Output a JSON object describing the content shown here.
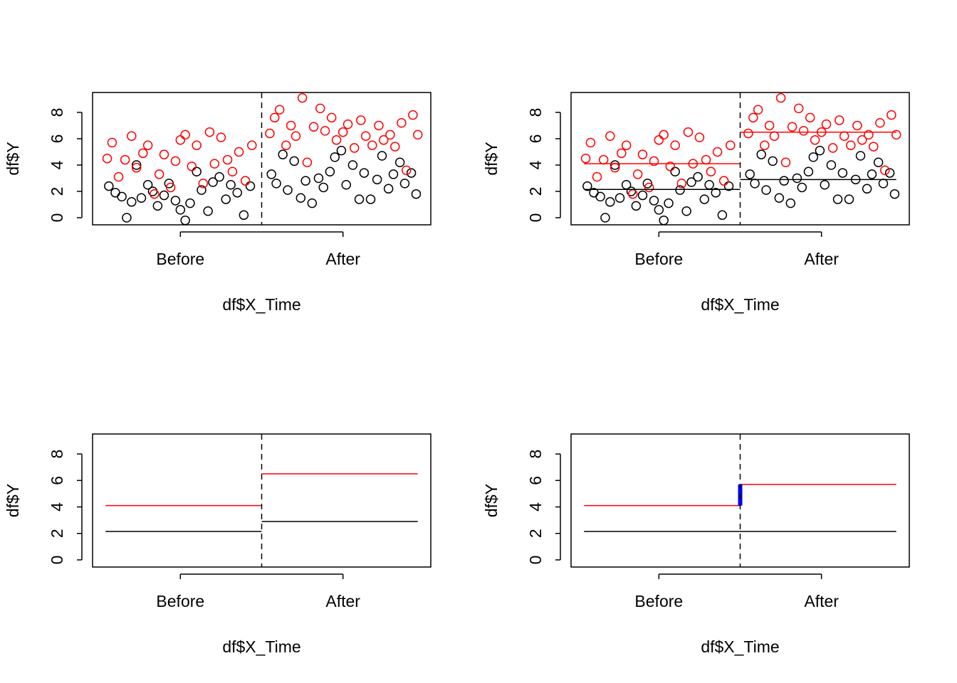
{
  "chart_data": [
    {
      "type": "scatter",
      "y_label": "df$Y",
      "x_label": "df$X_Time",
      "xlim": [
        -0.54,
        1.54
      ],
      "ylim": [
        -0.54,
        9.51
      ],
      "yticks": [
        0,
        2,
        4,
        6,
        8
      ],
      "xticks": [
        {
          "value": 0,
          "label": "Before"
        },
        {
          "value": 1,
          "label": "After"
        }
      ],
      "vline": 0.5,
      "series": [
        {
          "color": "#000000",
          "x": [
            -0.44,
            -0.4,
            -0.36,
            -0.33,
            -0.3,
            -0.27,
            -0.24,
            -0.2,
            -0.17,
            -0.14,
            -0.1,
            -0.07,
            -0.03,
            0.0,
            0.03,
            0.06,
            0.1,
            0.13,
            0.17,
            0.2,
            0.24,
            0.28,
            0.31,
            0.35,
            0.39,
            0.43
          ],
          "values": [
            2.4,
            1.9,
            1.6,
            0.0,
            1.2,
            4.0,
            1.5,
            2.5,
            2.0,
            0.9,
            1.7,
            2.6,
            1.3,
            0.6,
            -0.2,
            1.1,
            3.5,
            2.1,
            0.5,
            2.7,
            3.1,
            1.4,
            2.5,
            1.9,
            0.2,
            2.4
          ]
        },
        {
          "color": "#ff0000",
          "x": [
            -0.45,
            -0.42,
            -0.38,
            -0.34,
            -0.3,
            -0.27,
            -0.23,
            -0.2,
            -0.16,
            -0.13,
            -0.1,
            -0.06,
            -0.03,
            0.0,
            0.03,
            0.07,
            0.1,
            0.14,
            0.18,
            0.21,
            0.25,
            0.29,
            0.32,
            0.36,
            0.4,
            0.44
          ],
          "values": [
            4.5,
            5.7,
            3.1,
            4.4,
            6.2,
            3.8,
            4.9,
            5.5,
            1.8,
            3.3,
            4.8,
            2.3,
            4.3,
            5.9,
            6.3,
            3.9,
            5.5,
            2.6,
            6.5,
            4.1,
            6.1,
            4.4,
            3.5,
            5.0,
            2.8,
            5.5
          ]
        },
        {
          "color": "#000000",
          "x": [
            0.56,
            0.59,
            0.63,
            0.66,
            0.7,
            0.74,
            0.77,
            0.81,
            0.85,
            0.88,
            0.92,
            0.95,
            0.99,
            1.02,
            1.06,
            1.1,
            1.13,
            1.17,
            1.21,
            1.24,
            1.28,
            1.31,
            1.35,
            1.38,
            1.42,
            1.45
          ],
          "values": [
            3.3,
            2.6,
            4.8,
            2.1,
            4.3,
            1.5,
            2.8,
            1.1,
            3.0,
            2.3,
            3.5,
            4.6,
            5.1,
            2.5,
            4.0,
            1.4,
            3.4,
            1.4,
            2.9,
            4.7,
            2.2,
            3.3,
            4.2,
            2.6,
            3.4,
            1.8
          ]
        },
        {
          "color": "#ff0000",
          "x": [
            0.55,
            0.58,
            0.61,
            0.65,
            0.68,
            0.71,
            0.75,
            0.78,
            0.82,
            0.86,
            0.89,
            0.93,
            0.96,
            1.0,
            1.03,
            1.07,
            1.11,
            1.14,
            1.18,
            1.22,
            1.25,
            1.29,
            1.32,
            1.36,
            1.39,
            1.43,
            1.46
          ],
          "values": [
            6.4,
            7.6,
            8.2,
            5.5,
            7.0,
            6.2,
            9.1,
            4.2,
            6.9,
            8.3,
            6.6,
            7.6,
            5.9,
            6.5,
            7.1,
            5.3,
            7.4,
            6.2,
            5.5,
            7.0,
            5.9,
            6.3,
            5.4,
            7.2,
            3.6,
            7.8,
            6.3
          ]
        }
      ],
      "segments": []
    },
    {
      "type": "scatter",
      "y_label": "df$Y",
      "x_label": "df$X_Time",
      "xlim": [
        -0.54,
        1.54
      ],
      "ylim": [
        -0.54,
        9.51
      ],
      "yticks": [
        0,
        2,
        4,
        6,
        8
      ],
      "xticks": [
        {
          "value": 0,
          "label": "Before"
        },
        {
          "value": 1,
          "label": "After"
        }
      ],
      "vline": 0.5,
      "series": [
        {
          "color": "#000000",
          "x": [
            -0.44,
            -0.4,
            -0.36,
            -0.33,
            -0.3,
            -0.27,
            -0.24,
            -0.2,
            -0.17,
            -0.14,
            -0.1,
            -0.07,
            -0.03,
            0.0,
            0.03,
            0.06,
            0.1,
            0.13,
            0.17,
            0.2,
            0.24,
            0.28,
            0.31,
            0.35,
            0.39,
            0.43
          ],
          "values": [
            2.4,
            1.9,
            1.6,
            0.0,
            1.2,
            4.0,
            1.5,
            2.5,
            2.0,
            0.9,
            1.7,
            2.6,
            1.3,
            0.6,
            -0.2,
            1.1,
            3.5,
            2.1,
            0.5,
            2.7,
            3.1,
            1.4,
            2.5,
            1.9,
            0.2,
            2.4
          ]
        },
        {
          "color": "#ff0000",
          "x": [
            -0.45,
            -0.42,
            -0.38,
            -0.34,
            -0.3,
            -0.27,
            -0.23,
            -0.2,
            -0.16,
            -0.13,
            -0.1,
            -0.06,
            -0.03,
            0.0,
            0.03,
            0.07,
            0.1,
            0.14,
            0.18,
            0.21,
            0.25,
            0.29,
            0.32,
            0.36,
            0.4,
            0.44
          ],
          "values": [
            4.5,
            5.7,
            3.1,
            4.4,
            6.2,
            3.8,
            4.9,
            5.5,
            1.8,
            3.3,
            4.8,
            2.3,
            4.3,
            5.9,
            6.3,
            3.9,
            5.5,
            2.6,
            6.5,
            4.1,
            6.1,
            4.4,
            3.5,
            5.0,
            2.8,
            5.5
          ]
        },
        {
          "color": "#000000",
          "x": [
            0.56,
            0.59,
            0.63,
            0.66,
            0.7,
            0.74,
            0.77,
            0.81,
            0.85,
            0.88,
            0.92,
            0.95,
            0.99,
            1.02,
            1.06,
            1.1,
            1.13,
            1.17,
            1.21,
            1.24,
            1.28,
            1.31,
            1.35,
            1.38,
            1.42,
            1.45
          ],
          "values": [
            3.3,
            2.6,
            4.8,
            2.1,
            4.3,
            1.5,
            2.8,
            1.1,
            3.0,
            2.3,
            3.5,
            4.6,
            5.1,
            2.5,
            4.0,
            1.4,
            3.4,
            1.4,
            2.9,
            4.7,
            2.2,
            3.3,
            4.2,
            2.6,
            3.4,
            1.8
          ]
        },
        {
          "color": "#ff0000",
          "x": [
            0.55,
            0.58,
            0.61,
            0.65,
            0.68,
            0.71,
            0.75,
            0.78,
            0.82,
            0.86,
            0.89,
            0.93,
            0.96,
            1.0,
            1.03,
            1.07,
            1.11,
            1.14,
            1.18,
            1.22,
            1.25,
            1.29,
            1.32,
            1.36,
            1.39,
            1.43,
            1.46
          ],
          "values": [
            6.4,
            7.6,
            8.2,
            5.5,
            7.0,
            6.2,
            9.1,
            4.2,
            6.9,
            8.3,
            6.6,
            7.6,
            5.9,
            6.5,
            7.1,
            5.3,
            7.4,
            6.2,
            5.5,
            7.0,
            5.9,
            6.3,
            5.4,
            7.2,
            3.6,
            7.8,
            6.3
          ]
        }
      ],
      "segments": [
        {
          "color": "#ff0000",
          "x": [
            -0.46,
            0.5
          ],
          "y": [
            4.1,
            4.1
          ]
        },
        {
          "color": "#ff0000",
          "x": [
            0.5,
            1.46
          ],
          "y": [
            6.5,
            6.5
          ]
        },
        {
          "color": "#000000",
          "x": [
            -0.46,
            0.5
          ],
          "y": [
            2.15,
            2.15
          ]
        },
        {
          "color": "#000000",
          "x": [
            0.5,
            1.46
          ],
          "y": [
            2.9,
            2.9
          ]
        }
      ]
    },
    {
      "type": "segment",
      "y_label": "df$Y",
      "x_label": "df$X_Time",
      "xlim": [
        -0.54,
        1.54
      ],
      "ylim": [
        -0.54,
        9.51
      ],
      "yticks": [
        0,
        2,
        4,
        6,
        8
      ],
      "xticks": [
        {
          "value": 0,
          "label": "Before"
        },
        {
          "value": 1,
          "label": "After"
        }
      ],
      "vline": 0.5,
      "series": [],
      "segments": [
        {
          "color": "#ff0000",
          "x": [
            -0.46,
            0.5
          ],
          "y": [
            4.1,
            4.1
          ]
        },
        {
          "color": "#ff0000",
          "x": [
            0.5,
            1.46
          ],
          "y": [
            6.5,
            6.5
          ]
        },
        {
          "color": "#000000",
          "x": [
            -0.46,
            0.5
          ],
          "y": [
            2.15,
            2.15
          ]
        },
        {
          "color": "#000000",
          "x": [
            0.5,
            1.46
          ],
          "y": [
            2.9,
            2.9
          ]
        }
      ]
    },
    {
      "type": "segment",
      "y_label": "df$Y",
      "x_label": "df$X_Time",
      "xlim": [
        -0.54,
        1.54
      ],
      "ylim": [
        -0.54,
        9.51
      ],
      "yticks": [
        0,
        2,
        4,
        6,
        8
      ],
      "xticks": [
        {
          "value": 0,
          "label": "Before"
        },
        {
          "value": 1,
          "label": "After"
        }
      ],
      "vline": 0.5,
      "series": [],
      "segments": [
        {
          "color": "#ff0000",
          "x": [
            -0.46,
            0.5
          ],
          "y": [
            4.1,
            4.1
          ]
        },
        {
          "color": "#ff0000",
          "x": [
            0.5,
            1.46
          ],
          "y": [
            5.7,
            5.7
          ]
        },
        {
          "color": "#000000",
          "x": [
            -0.46,
            1.46
          ],
          "y": [
            2.15,
            2.15
          ]
        },
        {
          "color": "#0000ff",
          "x": [
            0.5,
            0.5
          ],
          "y": [
            4.1,
            5.7
          ],
          "width": 6
        }
      ]
    }
  ]
}
